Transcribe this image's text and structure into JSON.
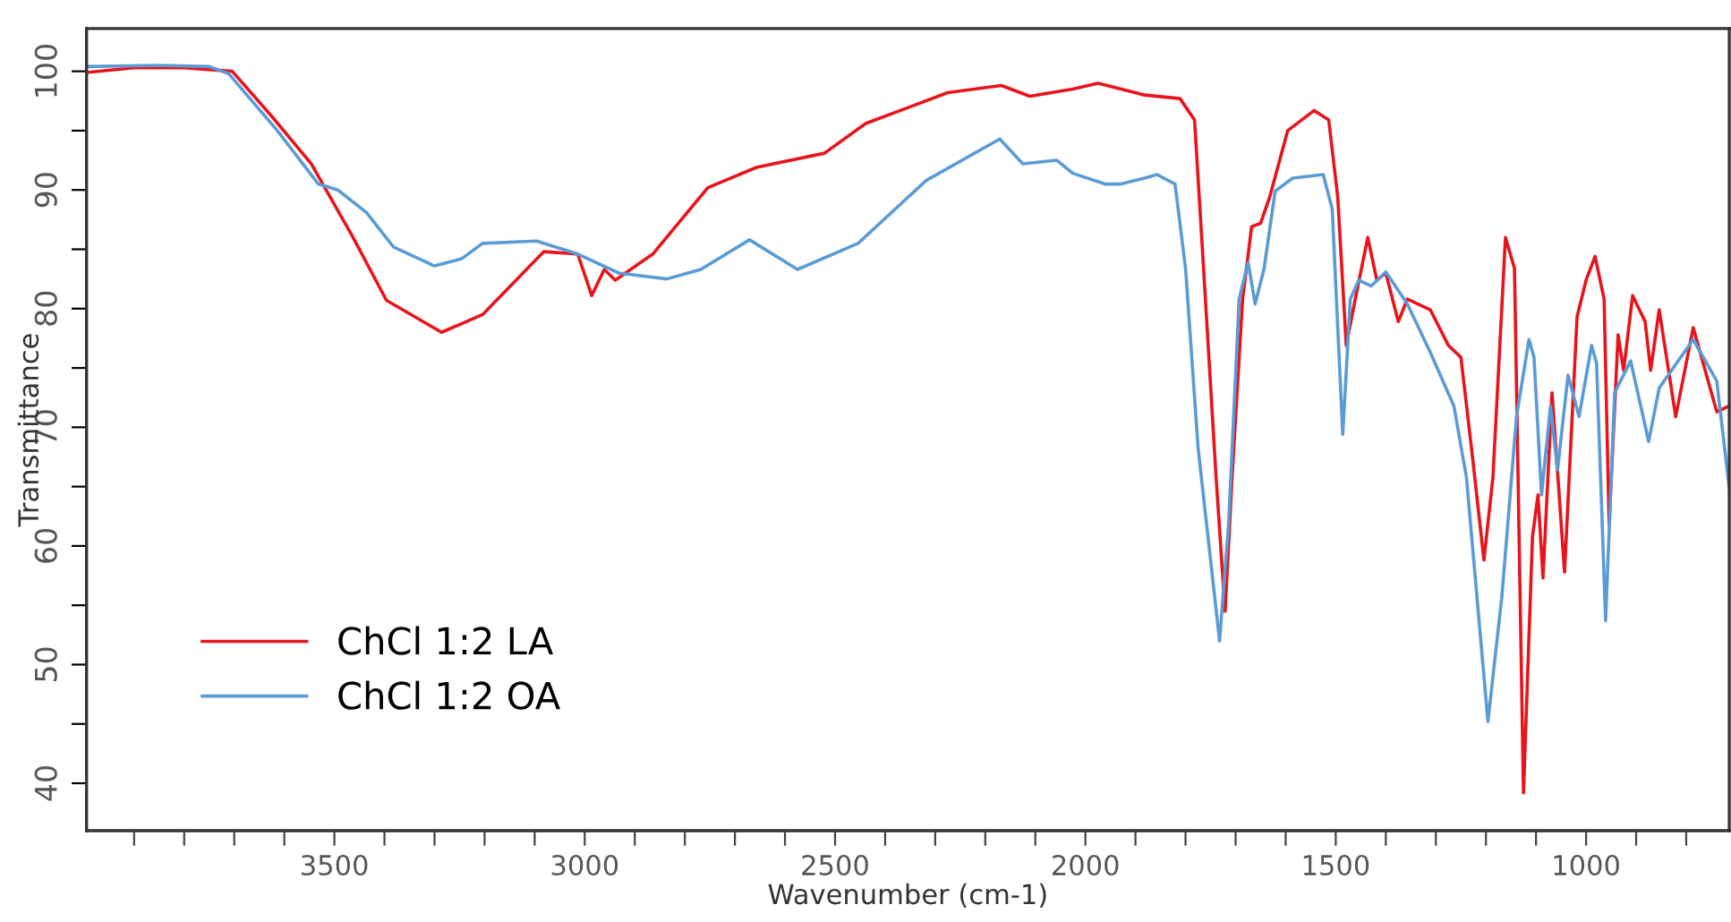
{
  "chart_data": {
    "type": "line",
    "xlabel": "Wavenumber (cm-1)",
    "ylabel": "Transmittance",
    "xlim": [
      3995,
      714
    ],
    "ylim": [
      36,
      103.6
    ],
    "xticks": [
      {
        "value": 3900,
        "label": null
      },
      {
        "value": 3800,
        "label": null
      },
      {
        "value": 3700,
        "label": null
      },
      {
        "value": 3600,
        "label": null
      },
      3500,
      {
        "value": 3400,
        "label": null
      },
      {
        "value": 3300,
        "label": null
      },
      {
        "value": 3200,
        "label": null
      },
      {
        "value": 3100,
        "label": null
      },
      3000,
      {
        "value": 2900,
        "label": null
      },
      {
        "value": 2800,
        "label": null
      },
      {
        "value": 2700,
        "label": null
      },
      {
        "value": 2600,
        "label": null
      },
      2500,
      {
        "value": 2400,
        "label": null
      },
      {
        "value": 2300,
        "label": null
      },
      {
        "value": 2200,
        "label": null
      },
      {
        "value": 2100,
        "label": null
      },
      2000,
      {
        "value": 1900,
        "label": null
      },
      {
        "value": 1800,
        "label": null
      },
      {
        "value": 1700,
        "label": null
      },
      {
        "value": 1600,
        "label": null
      },
      1500,
      {
        "value": 1400,
        "label": null
      },
      {
        "value": 1300,
        "label": null
      },
      {
        "value": 1200,
        "label": null
      },
      {
        "value": 1100,
        "label": null
      },
      1000,
      {
        "value": 900,
        "label": null
      },
      {
        "value": 800,
        "label": null
      }
    ],
    "yticks": [
      40,
      {
        "value": 45,
        "label": null
      },
      50,
      {
        "value": 55,
        "label": null
      },
      60,
      {
        "value": 65,
        "label": null
      },
      70,
      {
        "value": 75,
        "label": null
      },
      80,
      {
        "value": 85,
        "label": null
      },
      90,
      {
        "value": 95,
        "label": null
      },
      100
    ],
    "legend": "bottom left",
    "grid": false,
    "marker": "none",
    "line_style": "solid",
    "series": [
      {
        "name": "ChCl 1:2 LA",
        "color": "#e8141c",
        "x": [
          3995,
          3900,
          3800,
          3704,
          3625,
          3546,
          3464,
          3396,
          3286,
          3204,
          3082,
          3014,
          2986,
          2961,
          2939,
          2864,
          2754,
          2657,
          2521,
          2439,
          2275,
          2168,
          2111,
          2025,
          1975,
          1882,
          1811,
          1782,
          1764,
          1739,
          1721,
          1707,
          1686,
          1668,
          1650,
          1632,
          1596,
          1543,
          1514,
          1496,
          1479,
          1461,
          1436,
          1418,
          1400,
          1375,
          1357,
          1311,
          1275,
          1250,
          1229,
          1204,
          1186,
          1161,
          1143,
          1125,
          1107,
          1096,
          1086,
          1068,
          1043,
          1018,
          1000,
          982,
          964,
          954,
          936,
          925,
          907,
          882,
          871,
          854,
          821,
          786,
          739,
          714
        ],
        "values": [
          99.9,
          100.3,
          100.3,
          100.0,
          96.2,
          92.2,
          86.1,
          80.7,
          78.0,
          79.5,
          84.8,
          84.6,
          81.1,
          83.3,
          82.4,
          84.6,
          90.2,
          91.9,
          93.1,
          95.6,
          98.2,
          98.8,
          97.9,
          98.5,
          99.0,
          98.0,
          97.7,
          95.9,
          83.4,
          65.8,
          54.5,
          65.8,
          80.8,
          86.9,
          87.2,
          89.4,
          95.0,
          96.7,
          95.9,
          89.4,
          76.9,
          80.8,
          86.0,
          82.4,
          83.0,
          78.9,
          80.8,
          79.9,
          76.9,
          75.9,
          68.3,
          58.8,
          65.8,
          86.0,
          83.4,
          39.2,
          60.8,
          64.3,
          57.3,
          72.9,
          57.8,
          79.3,
          82.4,
          84.4,
          80.8,
          61.8,
          77.8,
          74.8,
          81.1,
          78.9,
          74.8,
          79.9,
          70.9,
          78.4,
          71.3,
          71.8
        ]
      },
      {
        "name": "ChCl 1:2 OA",
        "color": "#5b9bd5",
        "x": [
          3995,
          3850,
          3750,
          3711,
          3614,
          3532,
          3493,
          3436,
          3382,
          3300,
          3246,
          3204,
          3096,
          3014,
          2932,
          2836,
          2768,
          2671,
          2575,
          2454,
          2318,
          2171,
          2125,
          2057,
          2025,
          1961,
          1929,
          1882,
          1857,
          1821,
          1800,
          1775,
          1732,
          1714,
          1693,
          1675,
          1661,
          1643,
          1621,
          1586,
          1525,
          1507,
          1486,
          1471,
          1454,
          1429,
          1400,
          1357,
          1311,
          1264,
          1239,
          1196,
          1168,
          1139,
          1114,
          1104,
          1089,
          1071,
          1057,
          1036,
          1014,
          989,
          979,
          961,
          943,
          911,
          875,
          854,
          786,
          739,
          714
        ],
        "values": [
          100.4,
          100.5,
          100.4,
          99.8,
          95.0,
          90.5,
          90.0,
          88.1,
          85.2,
          83.6,
          84.2,
          85.5,
          85.7,
          84.6,
          83.0,
          82.5,
          83.3,
          85.8,
          83.3,
          85.5,
          90.8,
          94.3,
          92.2,
          92.5,
          91.4,
          90.5,
          90.5,
          91.0,
          91.3,
          90.5,
          83.4,
          68.3,
          52.0,
          61.8,
          80.8,
          83.9,
          80.4,
          83.4,
          89.9,
          91.0,
          91.3,
          88.4,
          69.4,
          80.8,
          82.4,
          81.9,
          83.1,
          80.4,
          76.3,
          71.8,
          65.8,
          45.2,
          55.8,
          70.9,
          77.4,
          75.9,
          64.3,
          71.8,
          66.4,
          74.4,
          70.9,
          76.9,
          75.4,
          53.7,
          72.9,
          75.6,
          68.8,
          73.3,
          77.4,
          73.9,
          64.9
        ]
      }
    ]
  }
}
